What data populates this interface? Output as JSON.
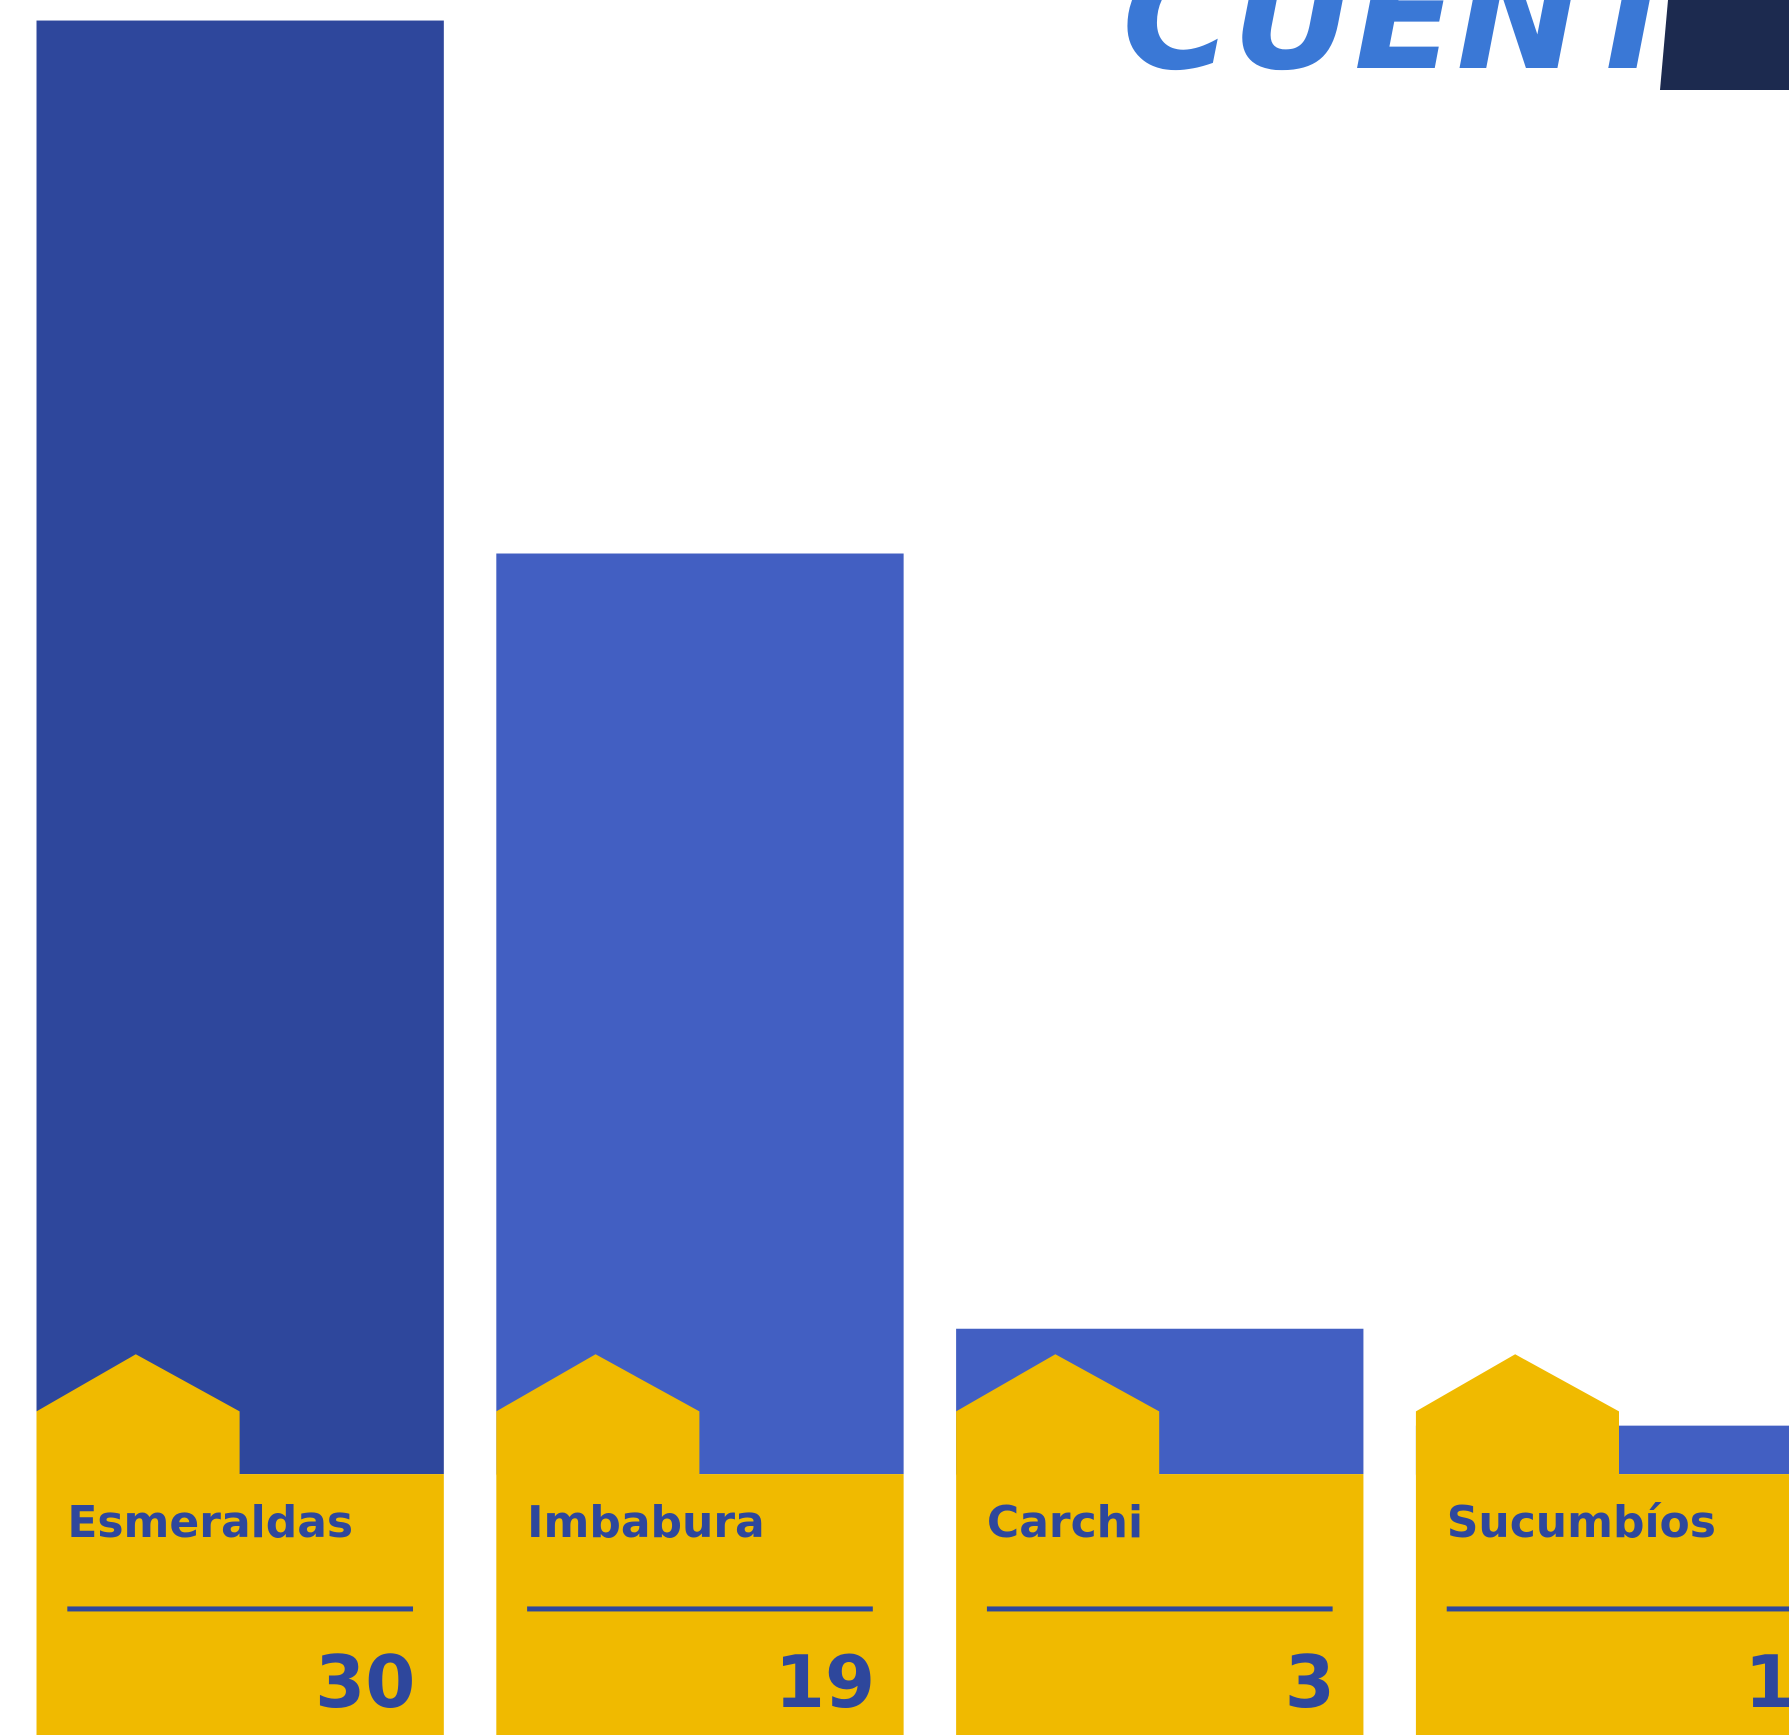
{
  "chart_data": {
    "type": "bar",
    "logo": "CUENTAS",
    "categories": [
      "Esmeraldas",
      "Imbabura",
      "Carchi",
      "Sucumbíos"
    ],
    "values": [
      30,
      19,
      3,
      1
    ],
    "colors": [
      "#2e479c",
      "#425fc2",
      "#425fc2",
      "#425fc2"
    ],
    "ylim": [
      0,
      30
    ]
  }
}
